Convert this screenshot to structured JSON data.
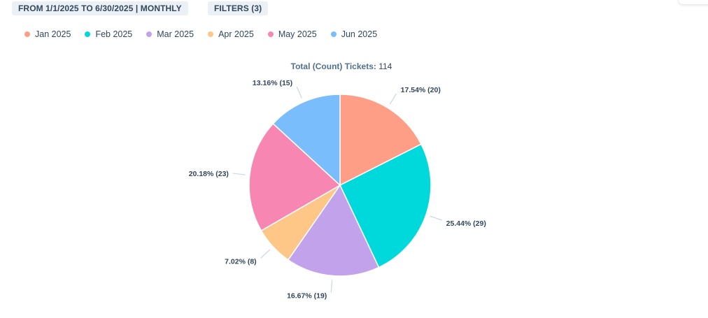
{
  "header": {
    "range_label": "FROM 1/1/2025 TO 6/30/2025 | MONTHLY",
    "filters_label": "FILTERS (3)"
  },
  "chart_data": {
    "type": "pie",
    "title": "Total (Count) Tickets:",
    "total": "114",
    "legend_placement": "top-left",
    "slices": [
      {
        "label": "Jan 2025",
        "value": 20,
        "percent": "17.54%",
        "color": "#ff9e87"
      },
      {
        "label": "Feb 2025",
        "value": 29,
        "percent": "25.44%",
        "color": "#00d9dc"
      },
      {
        "label": "Mar 2025",
        "value": 19,
        "percent": "16.67%",
        "color": "#c3a2ec"
      },
      {
        "label": "Apr 2025",
        "value": 8,
        "percent": "7.02%",
        "color": "#fec787"
      },
      {
        "label": "May 2025",
        "value": 23,
        "percent": "20.18%",
        "color": "#f786b2"
      },
      {
        "label": "Jun 2025",
        "value": 15,
        "percent": "13.16%",
        "color": "#7abdfd"
      }
    ]
  }
}
